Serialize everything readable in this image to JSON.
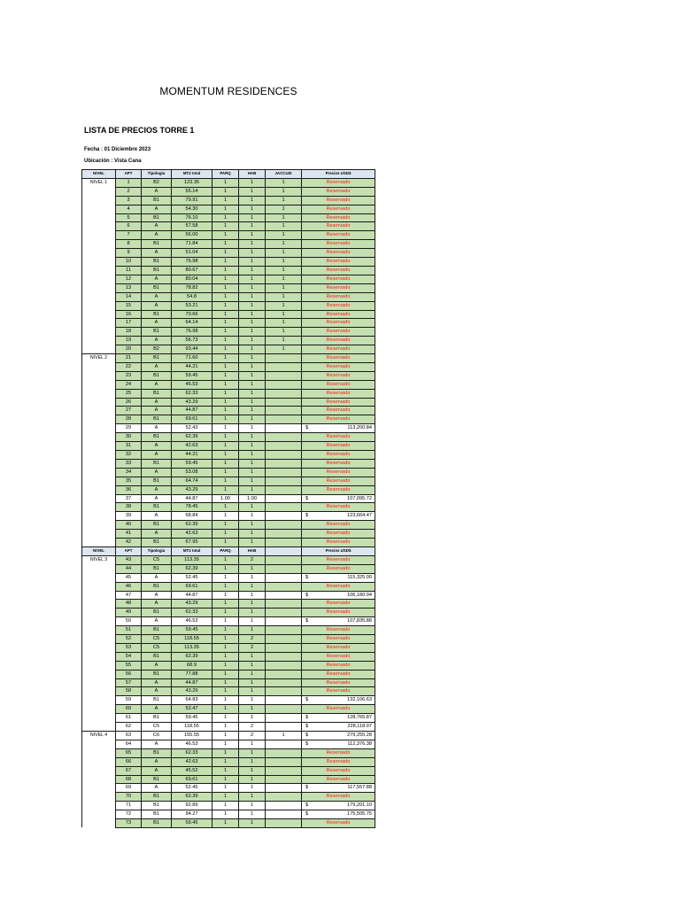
{
  "document": {
    "title": "MOMENTUM RESIDENCES",
    "subtitle": "LISTA DE PRECIOS TORRE 1",
    "fecha": "Fecha : 01 Diciembre 2023",
    "ubicacion": "Ubicación : Vista Cana"
  },
  "table": {
    "headers": [
      "NIVEL",
      "APT",
      "Tipologia",
      "MT2 total",
      "PARQ",
      "HAB",
      "JACCUZI",
      "Precios USD$"
    ],
    "headers_level3": [
      "NIVEL",
      "APT",
      "Tipologia",
      "MT2 total",
      "PARQ",
      "HAB",
      "",
      "Precios USD$"
    ],
    "reserved_label": "Reservado",
    "currency_symbol": "$",
    "colors": {
      "header_bg": "#dce6f1",
      "row_green": "#c4dfb0",
      "reserved_text": "#ff1a1a"
    },
    "levels": [
      {
        "label": "NIVEL 1",
        "rows": [
          {
            "apt": "1",
            "tip": "B2",
            "m2": "123.35",
            "parq": "1",
            "hab": "1",
            "jac": "1",
            "precio": "Reservado"
          },
          {
            "apt": "2",
            "tip": "A",
            "m2": "55.14",
            "parq": "1",
            "hab": "1",
            "jac": "1",
            "precio": "Reservado"
          },
          {
            "apt": "3",
            "tip": "B1",
            "m2": "79.91",
            "parq": "1",
            "hab": "1",
            "jac": "1",
            "precio": "Reservado"
          },
          {
            "apt": "4",
            "tip": "A",
            "m2": "54.30",
            "parq": "1",
            "hab": "1",
            "jac": "1",
            "precio": "Reservado"
          },
          {
            "apt": "5",
            "tip": "B1",
            "m2": "76.10",
            "parq": "1",
            "hab": "1",
            "jac": "1",
            "precio": "Reservado"
          },
          {
            "apt": "6",
            "tip": "A",
            "m2": "57.58",
            "parq": "1",
            "hab": "1",
            "jac": "1",
            "precio": "Reservado"
          },
          {
            "apt": "7",
            "tip": "A",
            "m2": "56.00",
            "parq": "1",
            "hab": "1",
            "jac": "1",
            "precio": "Reservado"
          },
          {
            "apt": "8",
            "tip": "B1",
            "m2": "71.84",
            "parq": "1",
            "hab": "1",
            "jac": "1",
            "precio": "Reservado"
          },
          {
            "apt": "9",
            "tip": "A",
            "m2": "51.04",
            "parq": "1",
            "hab": "1",
            "jac": "1",
            "precio": "Reservado"
          },
          {
            "apt": "10",
            "tip": "B1",
            "m2": "76.98",
            "parq": "1",
            "hab": "1",
            "jac": "1",
            "precio": "Reservado"
          },
          {
            "apt": "11",
            "tip": "B1",
            "m2": "80.67",
            "parq": "1",
            "hab": "1",
            "jac": "1",
            "precio": "Reservado"
          },
          {
            "apt": "12",
            "tip": "A",
            "m2": "80.04",
            "parq": "1",
            "hab": "1",
            "jac": "1",
            "precio": "Reservado"
          },
          {
            "apt": "13",
            "tip": "B1",
            "m2": "78.82",
            "parq": "1",
            "hab": "1",
            "jac": "1",
            "precio": "Reservado"
          },
          {
            "apt": "14",
            "tip": "A",
            "m2": "54.8",
            "parq": "1",
            "hab": "1",
            "jac": "1",
            "precio": "Reservado"
          },
          {
            "apt": "15",
            "tip": "A",
            "m2": "53.21",
            "parq": "1",
            "hab": "1",
            "jac": "1",
            "precio": "Reservado"
          },
          {
            "apt": "16",
            "tip": "B1",
            "m2": "70.66",
            "parq": "1",
            "hab": "1",
            "jac": "1",
            "precio": "Reservado"
          },
          {
            "apt": "17",
            "tip": "A",
            "m2": "64.14",
            "parq": "1",
            "hab": "1",
            "jac": "1",
            "precio": "Reservado"
          },
          {
            "apt": "18",
            "tip": "B1",
            "m2": "76.98",
            "parq": "1",
            "hab": "1",
            "jac": "1",
            "precio": "Reservado"
          },
          {
            "apt": "19",
            "tip": "A",
            "m2": "56.73",
            "parq": "1",
            "hab": "1",
            "jac": "1",
            "precio": "Reservado"
          },
          {
            "apt": "20",
            "tip": "B2",
            "m2": "93.44",
            "parq": "1",
            "hab": "1",
            "jac": "1",
            "precio": "Reservado"
          }
        ]
      },
      {
        "label": "NIVEL 2",
        "rows": [
          {
            "apt": "21",
            "tip": "B1",
            "m2": "71.60",
            "parq": "1",
            "hab": "1",
            "jac": "",
            "precio": "Reservado"
          },
          {
            "apt": "22",
            "tip": "A",
            "m2": "44.21",
            "parq": "1",
            "hab": "1",
            "jac": "",
            "precio": "Reservado"
          },
          {
            "apt": "23",
            "tip": "B1",
            "m2": "59.45",
            "parq": "1",
            "hab": "1",
            "jac": "",
            "precio": "Reservado"
          },
          {
            "apt": "24",
            "tip": "A",
            "m2": "46.53",
            "parq": "1",
            "hab": "1",
            "jac": "",
            "precio": "Reservado"
          },
          {
            "apt": "25",
            "tip": "B1",
            "m2": "62.33",
            "parq": "1",
            "hab": "1",
            "jac": "",
            "precio": "Reservado"
          },
          {
            "apt": "26",
            "tip": "A",
            "m2": "43.29",
            "parq": "1",
            "hab": "1",
            "jac": "",
            "precio": "Reservado"
          },
          {
            "apt": "27",
            "tip": "A",
            "m2": "44.87",
            "parq": "1",
            "hab": "1",
            "jac": "",
            "precio": "Reservado"
          },
          {
            "apt": "28",
            "tip": "B1",
            "m2": "69.61",
            "parq": "1",
            "hab": "1",
            "jac": "",
            "precio": "Reservado"
          },
          {
            "apt": "29",
            "tip": "A",
            "m2": "52.43",
            "parq": "1",
            "hab": "1",
            "jac": "",
            "precio": "113,200.84"
          },
          {
            "apt": "30",
            "tip": "B1",
            "m2": "62.39",
            "parq": "1",
            "hab": "1",
            "jac": "",
            "precio": "Reservado"
          },
          {
            "apt": "31",
            "tip": "A",
            "m2": "42.63",
            "parq": "1",
            "hab": "1",
            "jac": "",
            "precio": "Reservado"
          },
          {
            "apt": "32",
            "tip": "A",
            "m2": "44.21",
            "parq": "1",
            "hab": "1",
            "jac": "",
            "precio": "Reservado"
          },
          {
            "apt": "33",
            "tip": "B1",
            "m2": "59.45",
            "parq": "1",
            "hab": "1",
            "jac": "",
            "precio": "Reservado"
          },
          {
            "apt": "34",
            "tip": "A",
            "m2": "53.08",
            "parq": "1",
            "hab": "1",
            "jac": "",
            "precio": "Reservado"
          },
          {
            "apt": "35",
            "tip": "B1",
            "m2": "64.74",
            "parq": "1",
            "hab": "1",
            "jac": "",
            "precio": "Reservado"
          },
          {
            "apt": "36",
            "tip": "A",
            "m2": "43.29",
            "parq": "1",
            "hab": "1",
            "jac": "",
            "precio": "Reservado"
          },
          {
            "apt": "37",
            "tip": "A",
            "m2": "44.87",
            "parq": "1.00",
            "hab": "1.00",
            "jac": "",
            "precio": "107,095.72"
          },
          {
            "apt": "38",
            "tip": "B1",
            "m2": "78.45",
            "parq": "1",
            "hab": "1",
            "jac": "",
            "precio": "Reservado"
          },
          {
            "apt": "39",
            "tip": "A",
            "m2": "68.84",
            "parq": "1",
            "hab": "1",
            "jac": "",
            "precio": "123,664.47"
          },
          {
            "apt": "40",
            "tip": "B1",
            "m2": "62.39",
            "parq": "1",
            "hab": "1",
            "jac": "",
            "precio": "Reservado"
          },
          {
            "apt": "41",
            "tip": "A",
            "m2": "42.63",
            "parq": "1",
            "hab": "1",
            "jac": "",
            "precio": "Reservado"
          },
          {
            "apt": "42",
            "tip": "B1",
            "m2": "67.95",
            "parq": "1",
            "hab": "1",
            "jac": "",
            "precio": "Reservado"
          }
        ]
      },
      {
        "label": "NIVEL 3",
        "rows": [
          {
            "apt": "43",
            "tip": "C5",
            "m2": "113.35",
            "parq": "1",
            "hab": "2",
            "jac": "",
            "precio": "Reservado"
          },
          {
            "apt": "44",
            "tip": "B1",
            "m2": "62.39",
            "parq": "1",
            "hab": "1",
            "jac": "",
            "precio": "Reservado"
          },
          {
            "apt": "45",
            "tip": "A",
            "m2": "52.45",
            "parq": "1",
            "hab": "1",
            "jac": "",
            "precio": "115,325.00"
          },
          {
            "apt": "46",
            "tip": "B1",
            "m2": "69.61",
            "parq": "1",
            "hab": "1",
            "jac": "",
            "precio": "Reservado"
          },
          {
            "apt": "47",
            "tip": "A",
            "m2": "44.87",
            "parq": "1",
            "hab": "1",
            "jac": "",
            "precio": "106,180.94"
          },
          {
            "apt": "48",
            "tip": "A",
            "m2": "43.29",
            "parq": "1",
            "hab": "1",
            "jac": "",
            "precio": "Reservado"
          },
          {
            "apt": "49",
            "tip": "B1",
            "m2": "62.33",
            "parq": "1",
            "hab": "1",
            "jac": "",
            "precio": "Reservado"
          },
          {
            "apt": "50",
            "tip": "A",
            "m2": "46.53",
            "parq": "1",
            "hab": "1",
            "jac": "",
            "precio": "107,835.88"
          },
          {
            "apt": "51",
            "tip": "B1",
            "m2": "59.45",
            "parq": "1",
            "hab": "1",
            "jac": "",
            "precio": "Reservado"
          },
          {
            "apt": "52",
            "tip": "C5",
            "m2": "118.55",
            "parq": "1",
            "hab": "2",
            "jac": "",
            "precio": "Reservado"
          },
          {
            "apt": "53",
            "tip": "C5",
            "m2": "113.35",
            "parq": "1",
            "hab": "2",
            "jac": "",
            "precio": "Reservado"
          },
          {
            "apt": "54",
            "tip": "B1",
            "m2": "62.39",
            "parq": "1",
            "hab": "1",
            "jac": "",
            "precio": "Reservado"
          },
          {
            "apt": "55",
            "tip": "A",
            "m2": "68.9",
            "parq": "1",
            "hab": "1",
            "jac": "",
            "precio": "Reservado"
          },
          {
            "apt": "56",
            "tip": "B1",
            "m2": "77.88",
            "parq": "1",
            "hab": "1",
            "jac": "",
            "precio": "Reservado"
          },
          {
            "apt": "57",
            "tip": "A",
            "m2": "44.87",
            "parq": "1",
            "hab": "1",
            "jac": "",
            "precio": "Reservado"
          },
          {
            "apt": "58",
            "tip": "A",
            "m2": "43.29",
            "parq": "1",
            "hab": "1",
            "jac": "",
            "precio": "Reservado"
          },
          {
            "apt": "59",
            "tip": "B1",
            "m2": "64.83",
            "parq": "1",
            "hab": "1",
            "jac": "",
            "precio": "132,106.63"
          },
          {
            "apt": "60",
            "tip": "A",
            "m2": "52.47",
            "parq": "1",
            "hab": "1",
            "jac": "",
            "precio": "Reservado"
          },
          {
            "apt": "61",
            "tip": "B1",
            "m2": "59.45",
            "parq": "1",
            "hab": "1",
            "jac": "",
            "precio": "128,765.87"
          },
          {
            "apt": "62",
            "tip": "C5",
            "m2": "118.55",
            "parq": "1",
            "hab": "2",
            "jac": "",
            "precio": "228,118.07"
          }
        ]
      },
      {
        "label": "NIVEL 4",
        "rows": [
          {
            "apt": "63",
            "tip": "C6",
            "m2": "155.55",
            "parq": "1",
            "hab": "2",
            "jac": "1",
            "precio": "279,255.28"
          },
          {
            "apt": "64",
            "tip": "A",
            "m2": "46.53",
            "parq": "1",
            "hab": "1",
            "jac": "",
            "precio": "112,376.38"
          },
          {
            "apt": "65",
            "tip": "B1",
            "m2": "62.33",
            "parq": "1",
            "hab": "1",
            "jac": "",
            "precio": "Reservado"
          },
          {
            "apt": "66",
            "tip": "A",
            "m2": "42.63",
            "parq": "1",
            "hab": "1",
            "jac": "",
            "precio": "Reservado"
          },
          {
            "apt": "67",
            "tip": "A",
            "m2": "45.52",
            "parq": "1",
            "hab": "1",
            "jac": "",
            "precio": "Reservado"
          },
          {
            "apt": "68",
            "tip": "B1",
            "m2": "69.61",
            "parq": "1",
            "hab": "1",
            "jac": "",
            "precio": "Reservado"
          },
          {
            "apt": "69",
            "tip": "A",
            "m2": "52.45",
            "parq": "1",
            "hab": "1",
            "jac": "",
            "precio": "117,557.88"
          },
          {
            "apt": "70",
            "tip": "B1",
            "m2": "62.39",
            "parq": "1",
            "hab": "1",
            "jac": "",
            "precio": "Reservado"
          },
          {
            "apt": "71",
            "tip": "B1",
            "m2": "92.89",
            "parq": "1",
            "hab": "1",
            "jac": "",
            "precio": "179,201.10"
          },
          {
            "apt": "72",
            "tip": "B1",
            "m2": "94.27",
            "parq": "1",
            "hab": "1",
            "jac": "",
            "precio": "175,505.75"
          },
          {
            "apt": "73",
            "tip": "B1",
            "m2": "59.45",
            "parq": "1",
            "hab": "1",
            "jac": "",
            "precio": "Reservado"
          }
        ]
      }
    ]
  }
}
